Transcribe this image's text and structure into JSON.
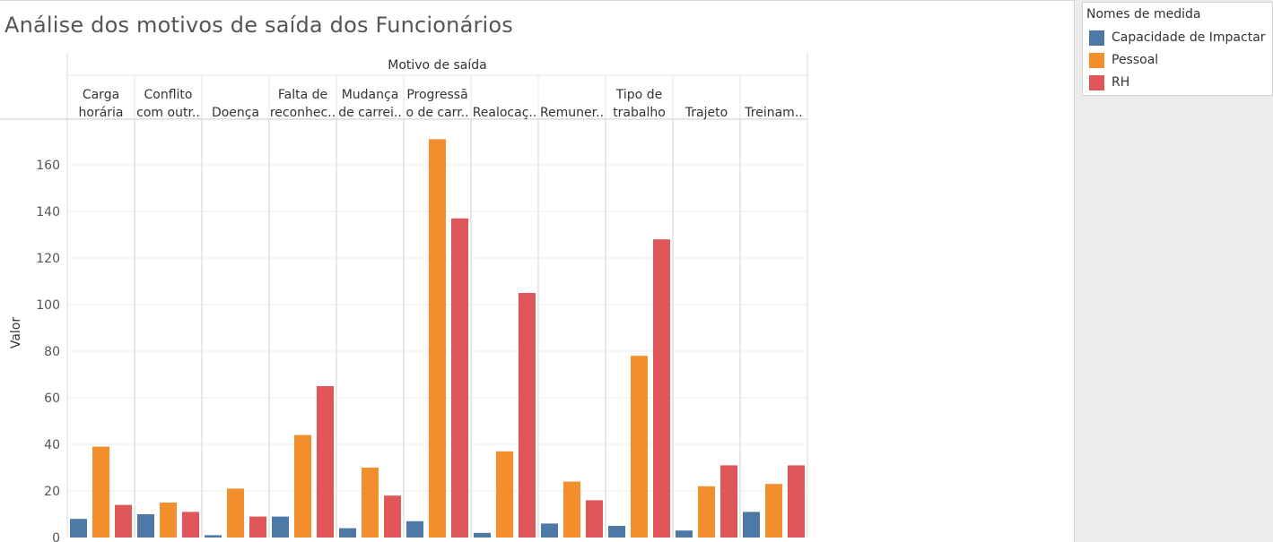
{
  "title": "Análise dos motivos de saída dos Funcionários",
  "legend": {
    "title": "Nomes de medida",
    "items": [
      {
        "label": "Capacidade de Impactar",
        "color": "#4e79a7"
      },
      {
        "label": "Pessoal",
        "color": "#f28e2b"
      },
      {
        "label": "RH",
        "color": "#e15759"
      }
    ]
  },
  "chart_data": {
    "type": "bar",
    "title": "Análise dos motivos de saída dos Funcionários",
    "column_header": "Motivo de saída",
    "ylabel": "Valor",
    "xlabel": "",
    "ylim": [
      0,
      175
    ],
    "yticks": [
      0,
      20,
      40,
      60,
      80,
      100,
      120,
      140,
      160
    ],
    "grid": true,
    "legend_position": "right",
    "categories": [
      [
        "Carga",
        "horária"
      ],
      [
        "Conflito",
        "com outr.."
      ],
      [
        "Doença"
      ],
      [
        "Falta de",
        "reconhec.."
      ],
      [
        "Mudança",
        "de carrei.."
      ],
      [
        "Progressã",
        "o de carr.."
      ],
      [
        "Realocaç.."
      ],
      [
        "Remuner.."
      ],
      [
        "Tipo de",
        "trabalho"
      ],
      [
        "Trajeto"
      ],
      [
        "Treinam.."
      ]
    ],
    "series": [
      {
        "name": "Capacidade de Impactar",
        "color": "#4e79a7",
        "values": [
          8,
          10,
          1,
          9,
          4,
          7,
          2,
          6,
          5,
          3,
          11
        ]
      },
      {
        "name": "Pessoal",
        "color": "#f28e2b",
        "values": [
          39,
          15,
          21,
          44,
          30,
          171,
          37,
          24,
          78,
          22,
          23
        ]
      },
      {
        "name": "RH",
        "color": "#e15759",
        "values": [
          14,
          11,
          9,
          65,
          18,
          137,
          105,
          16,
          128,
          31,
          31
        ]
      }
    ]
  }
}
